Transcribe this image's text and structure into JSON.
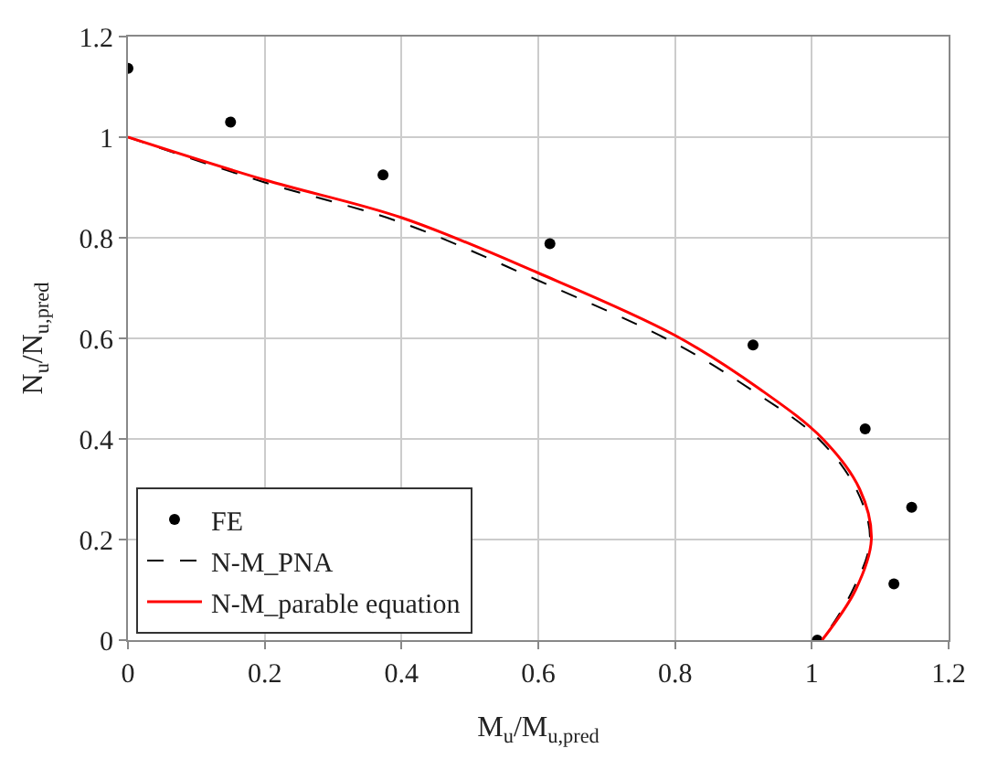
{
  "chart_data": {
    "type": "scatter",
    "xlabel": "M$_{u}$/M$_{u,pred}$",
    "ylabel": "N$_{u}$/N$_{u,pred}$",
    "xlim": [
      0,
      1.2
    ],
    "xticks": [
      0,
      0.2,
      0.4,
      0.6,
      0.8,
      1,
      1.2
    ],
    "ylim": [
      0,
      1.2
    ],
    "yticks": [
      0,
      0.2,
      0.4,
      0.6,
      0.8,
      1,
      1.2
    ],
    "grid": true,
    "legend": "bottom left",
    "series": [
      {
        "name": "FE",
        "color": "#000000",
        "marker": "circle",
        "x": [
          0,
          0.15,
          0.373,
          0.617,
          0.914,
          1.078,
          1.146,
          1.12,
          1.008
        ],
        "values": [
          1.137,
          1.03,
          0.925,
          0.788,
          0.587,
          0.42,
          0.264,
          0.112,
          0.0
        ]
      },
      {
        "name": "N-M_PNA",
        "type": "line",
        "color": "#000000",
        "line_style": "dashed",
        "x": [
          0,
          0.2,
          0.4,
          0.6,
          0.8,
          0.92,
          1.01,
          1.065,
          1.085,
          1.06,
          1.015
        ],
        "values": [
          1,
          0.91,
          0.83,
          0.715,
          0.59,
          0.49,
          0.4,
          0.3,
          0.2,
          0.1,
          0
        ]
      },
      {
        "name": "N-M_parable equation",
        "type": "line",
        "color": "#ff0000",
        "line_style": "solid",
        "x": [
          0,
          0.2,
          0.4,
          0.6,
          0.8,
          0.923,
          1.016,
          1.07,
          1.087,
          1.064,
          1.015
        ],
        "values": [
          1,
          0.915,
          0.84,
          0.73,
          0.606,
          0.5,
          0.4,
          0.3,
          0.2,
          0.1,
          0
        ]
      }
    ]
  }
}
